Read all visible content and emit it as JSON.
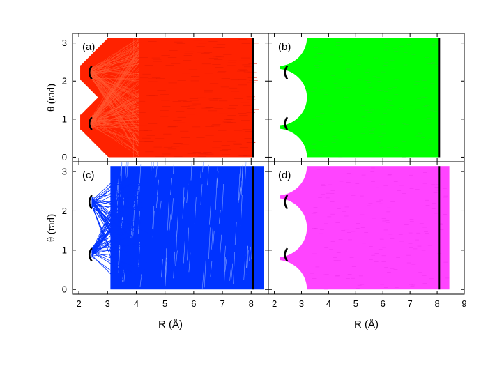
{
  "chart_data": [
    {
      "type": "scatter",
      "panel": "a",
      "label": "(a)",
      "color": "#ff2200",
      "ylabel": "θ (rad)",
      "xlabel": "",
      "xlim": [
        1.8,
        9.0
      ],
      "ylim": [
        -0.12,
        3.25
      ],
      "region": {
        "r_min": 2.0,
        "r_max": 8.05,
        "lobes": [
          {
            "center": 0.92,
            "width_at_2": 0.35
          },
          {
            "center": 2.22,
            "width_at_2": 0.35
          }
        ],
        "fill_from_r": 3.9,
        "right_edge_r": 8.05
      },
      "markers": {
        "short_segments": [
          {
            "r": 2.38,
            "theta_range": [
              0.72,
              1.05
            ]
          },
          {
            "r": 2.38,
            "theta_range": [
              2.05,
              2.4
            ]
          }
        ],
        "vertical_line_r": 8.07
      }
    },
    {
      "type": "scatter",
      "panel": "b",
      "label": "(b)",
      "color": "#00ff00",
      "ylabel": "",
      "xlabel": "",
      "xlim": [
        1.8,
        9.0
      ],
      "ylim": [
        -0.12,
        3.25
      ],
      "region": {
        "r_min": 2.2,
        "r_max": 8.05,
        "excluded_bumps_center_theta": [
          0.0,
          1.57,
          3.14
        ],
        "excluded_bump_reach_r": 3.2,
        "right_edge_r": 8.05
      },
      "markers": {
        "short_segments": [
          {
            "r": 2.4,
            "theta_range": [
              0.72,
              1.05
            ]
          },
          {
            "r": 2.4,
            "theta_range": [
              2.05,
              2.4
            ]
          }
        ],
        "vertical_line_r": 8.07
      }
    },
    {
      "type": "scatter",
      "panel": "c",
      "label": "(c)",
      "color": "#0033ff",
      "ylabel": "θ (rad)",
      "xlabel": "R (Å)",
      "xlim": [
        1.8,
        9.0
      ],
      "ylim": [
        -0.12,
        3.25
      ],
      "region": {
        "r_min": 3.1,
        "r_max": 8.45,
        "right_edge_r": 8.45
      },
      "markers": {
        "short_segments": [
          {
            "r": 2.38,
            "theta_range": [
              0.72,
              1.05
            ]
          },
          {
            "r": 2.38,
            "theta_range": [
              2.05,
              2.4
            ]
          }
        ],
        "vertical_line_r": 8.07
      }
    },
    {
      "type": "scatter",
      "panel": "d",
      "label": "(d)",
      "color": "#ff44ff",
      "ylabel": "",
      "xlabel": "R (Å)",
      "xlim": [
        1.8,
        9.0
      ],
      "ylim": [
        -0.12,
        3.25
      ],
      "region": {
        "r_min": 2.2,
        "r_max": 8.45,
        "excluded_bumps_center_theta": [
          0.0,
          1.57,
          3.14
        ],
        "excluded_bump_reach_r": 3.2,
        "right_edge_r": 8.45
      },
      "markers": {
        "short_segments": [
          {
            "r": 2.4,
            "theta_range": [
              0.72,
              1.05
            ]
          },
          {
            "r": 2.4,
            "theta_range": [
              2.05,
              2.4
            ]
          }
        ],
        "vertical_line_r": 8.07
      }
    }
  ],
  "axes": {
    "x_ticks": [
      2,
      3,
      4,
      5,
      6,
      7,
      8,
      9
    ],
    "y_ticks": [
      0,
      1,
      2,
      3
    ],
    "x_tick_labels": [
      "2",
      "3",
      "4",
      "5",
      "6",
      "7",
      "8",
      "9"
    ],
    "y_tick_labels": [
      "0",
      "1",
      "2",
      "3"
    ],
    "x_title": "R (Å)",
    "y_title": "θ (rad)"
  }
}
